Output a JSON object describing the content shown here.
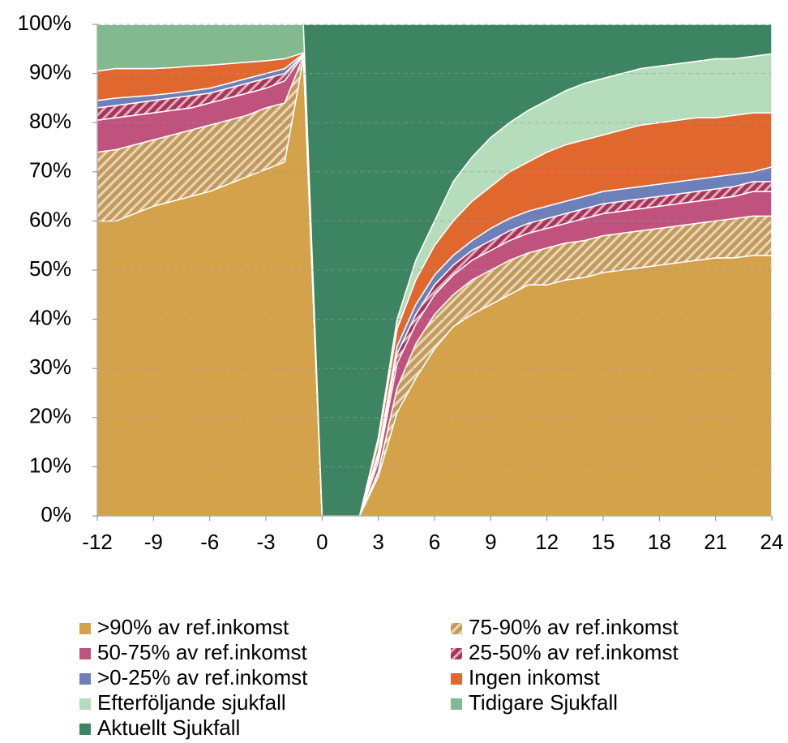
{
  "chart_data": {
    "type": "stacked_area",
    "x": [
      -12,
      -11,
      -10,
      -9,
      -8,
      -7,
      -6,
      -5,
      -4,
      -3,
      -2,
      -1,
      0,
      1,
      2,
      3,
      4,
      5,
      6,
      7,
      8,
      9,
      10,
      11,
      12,
      13,
      14,
      15,
      16,
      17,
      18,
      19,
      20,
      21,
      22,
      23,
      24
    ],
    "xlim": [
      -12,
      24
    ],
    "xticks": [
      -12,
      -9,
      -6,
      -3,
      0,
      3,
      6,
      9,
      12,
      15,
      18,
      21,
      24
    ],
    "ylim": [
      0,
      100
    ],
    "yticks": [
      {
        "value": 0,
        "label": "0%"
      },
      {
        "value": 10,
        "label": "10%"
      },
      {
        "value": 20,
        "label": "20%"
      },
      {
        "value": 30,
        "label": "30%"
      },
      {
        "value": 40,
        "label": "40%"
      },
      {
        "value": 50,
        "label": "50%"
      },
      {
        "value": 60,
        "label": "60%"
      },
      {
        "value": 70,
        "label": "70%"
      },
      {
        "value": 80,
        "label": "80%"
      },
      {
        "value": 90,
        "label": "90%"
      },
      {
        "value": 100,
        "label": "100%"
      }
    ],
    "grid": true,
    "series": [
      {
        "name": ">90% av ref.inkomst",
        "color": "#d4a24a",
        "values": [
          60,
          60,
          61.5,
          63,
          64,
          65,
          66,
          67.5,
          69,
          70.5,
          72,
          93,
          0,
          0,
          0,
          8,
          21,
          28,
          34,
          38.5,
          41,
          43,
          45,
          47,
          47,
          48,
          48.5,
          49.5,
          50,
          50.5,
          51,
          51.5,
          52,
          52.5,
          52.5,
          53,
          53
        ]
      },
      {
        "name": "75-90% av ref.inkomst",
        "color": "#c49a5a",
        "pattern": "diagonal",
        "values": [
          14,
          14.5,
          14,
          13.5,
          13.5,
          13.5,
          13.5,
          13,
          12.5,
          12.5,
          12,
          0.5,
          0,
          0,
          0,
          1,
          5,
          7,
          7,
          6.5,
          7,
          7,
          7,
          6.5,
          7.5,
          7.5,
          7.5,
          7.5,
          7.5,
          7.5,
          7.5,
          7.5,
          7.5,
          7.5,
          8,
          8,
          8
        ]
      },
      {
        "name": "50-75% av ref.inkomst",
        "color": "#c0527e",
        "values": [
          6.5,
          6.5,
          6,
          5.5,
          5,
          4.5,
          4.5,
          4.5,
          4.5,
          4,
          4.5,
          0.2,
          0,
          0,
          0,
          2,
          5,
          4,
          4,
          4,
          4,
          4,
          4,
          4,
          4,
          4,
          4.5,
          4.5,
          4.5,
          4.5,
          4.5,
          4.5,
          4.5,
          4.5,
          4.5,
          5,
          5
        ]
      },
      {
        "name": "25-50% av ref.inkomst",
        "color": "#a8345a",
        "pattern": "diagonal",
        "values": [
          2.5,
          2.5,
          2.5,
          2.5,
          2.5,
          2.5,
          2,
          2,
          2,
          2,
          1.5,
          0.1,
          0,
          0,
          0,
          1,
          2,
          2,
          2,
          2,
          2,
          2,
          2,
          2,
          2,
          2,
          2,
          2,
          2,
          2,
          2,
          2,
          2,
          2,
          2,
          2,
          2
        ]
      },
      {
        "name": ">0-25% av ref.inkomst",
        "color": "#6d80ba",
        "values": [
          1.5,
          1.5,
          1.3,
          1.1,
          1,
          1,
          1,
          1,
          1,
          1,
          1,
          0.2,
          0,
          0,
          0,
          1,
          1.5,
          2,
          2,
          2,
          2,
          2.5,
          2.5,
          2.5,
          2.5,
          2.5,
          2.5,
          2.5,
          2.5,
          2.5,
          2.5,
          2.5,
          2.5,
          2.5,
          2.5,
          2,
          3
        ]
      },
      {
        "name": "Ingen inkomst",
        "color": "#e0682e",
        "values": [
          6,
          6,
          5.7,
          5.4,
          5.2,
          5,
          4.7,
          4,
          3.3,
          2.6,
          2,
          0.2,
          0,
          0,
          0,
          2,
          3.5,
          5,
          6,
          7,
          8,
          8.5,
          9.5,
          10,
          11,
          11.5,
          11.5,
          11.5,
          12,
          12.5,
          12.5,
          12.5,
          12.5,
          12,
          12,
          12,
          11
        ]
      },
      {
        "name": "Efterföljande sjukfall",
        "color": "#b5dcbb",
        "values": [
          0,
          0,
          0,
          0,
          0,
          0,
          0,
          0,
          0,
          0,
          0,
          0,
          0,
          0,
          0,
          1,
          2,
          4,
          5,
          8,
          9,
          10,
          10,
          10.5,
          10.5,
          11,
          11.5,
          11.5,
          11.5,
          11.5,
          11.5,
          11.5,
          11.5,
          12,
          11.5,
          11.5,
          12
        ]
      },
      {
        "name": "Tidigare Sjukfall",
        "color": "#82b98e",
        "values": [
          9.5,
          9,
          9,
          9,
          8.8,
          8.5,
          8.3,
          8,
          7.7,
          7.4,
          7,
          5.8,
          0,
          0,
          0,
          0,
          0,
          0,
          0,
          0,
          0,
          0,
          0,
          0,
          0,
          0,
          0,
          0,
          0,
          0,
          0,
          0,
          0,
          0,
          0,
          0,
          0
        ]
      },
      {
        "name": "Aktuellt Sjukfall",
        "color": "#3c8462",
        "values": [
          0,
          0,
          0,
          0,
          0,
          0,
          0,
          0,
          0,
          0,
          0,
          0,
          100,
          100,
          100,
          84,
          60,
          48,
          40,
          32,
          27,
          23,
          20,
          17.5,
          15.5,
          13.5,
          12,
          11,
          10,
          9,
          8.5,
          8,
          7.5,
          7,
          7,
          6.5,
          6
        ]
      }
    ]
  }
}
